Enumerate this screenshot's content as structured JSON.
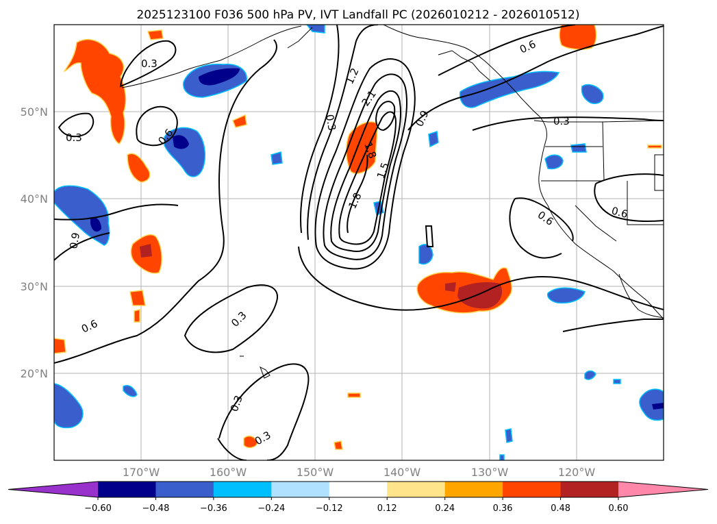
{
  "title": "2025123100 F036 500 hPa PV, IVT Landfall PC (2026010212 - 2026010512)",
  "latitude_labels": [
    "50°N",
    "40°N",
    "30°N",
    "20°N"
  ],
  "longitude_labels": [
    "170°W",
    "160°W",
    "150°W",
    "140°W",
    "130°W",
    "120°W"
  ],
  "colorbar": {
    "ticks": [
      "−0.60",
      "−0.48",
      "−0.36",
      "−0.24",
      "−0.12",
      "0.12",
      "0.24",
      "0.36",
      "0.48",
      "0.60"
    ],
    "colors": [
      "#9932cc",
      "#00008b",
      "#3a5fcd",
      "#00bfff",
      "#b0e2ff",
      "#ffffff",
      "#ffe48a",
      "#ffa500",
      "#ff4500",
      "#b22222",
      "#ff88aa"
    ]
  },
  "contour_labels": [
    "0.3",
    "0.3",
    "0.3",
    "0.3",
    "0.3",
    "0.3",
    "0.3",
    "0.6",
    "0.6",
    "0.6",
    "0.6",
    "0.6",
    "0.9",
    "0.9",
    "1.2",
    "2.1",
    "1.8",
    "1.5",
    "1.8"
  ]
}
